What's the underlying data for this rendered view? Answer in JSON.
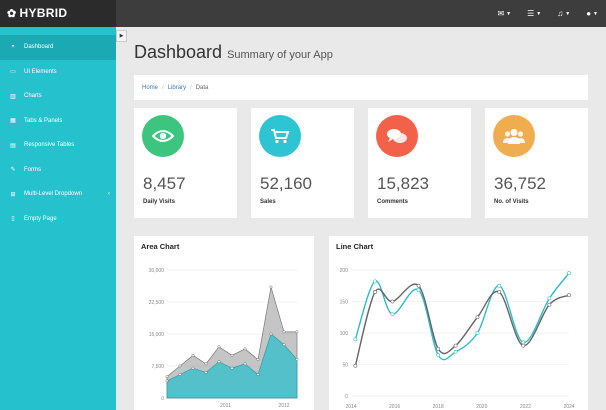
{
  "brand": {
    "name": "HYBRID"
  },
  "topbar": {
    "icons": [
      "envelope-icon",
      "tasks-icon",
      "bell-icon",
      "user-icon"
    ]
  },
  "sidebar": {
    "items": [
      {
        "label": "Dashboard",
        "icon": "dashboard-icon",
        "active": true
      },
      {
        "label": "UI Elements",
        "icon": "monitor-icon"
      },
      {
        "label": "Charts",
        "icon": "bar-chart-icon"
      },
      {
        "label": "Tabs & Panels",
        "icon": "grid-icon"
      },
      {
        "label": "Responsive Tables",
        "icon": "table-icon"
      },
      {
        "label": "Forms",
        "icon": "edit-icon"
      },
      {
        "label": "Multi-Level Dropdown",
        "icon": "sitemap-icon",
        "chevron": "‹"
      },
      {
        "label": "Empty Page",
        "icon": "file-icon"
      }
    ]
  },
  "header": {
    "title": "Dashboard",
    "subtitle": "Summary of your App"
  },
  "breadcrumb": {
    "items": [
      "Home",
      "Library",
      "Data"
    ]
  },
  "stats": [
    {
      "value": "8,457",
      "label": "Daily Visits",
      "color": "#3dc47e",
      "icon": "eye-icon"
    },
    {
      "value": "52,160",
      "label": "Sales",
      "color": "#2fc4d4",
      "icon": "shopping-cart-icon"
    },
    {
      "value": "15,823",
      "label": "Comments",
      "color": "#f2624a",
      "icon": "comments-icon"
    },
    {
      "value": "36,752",
      "label": "No. of Visits",
      "color": "#f0ad4e",
      "icon": "users-icon"
    }
  ],
  "chart_data": [
    {
      "type": "area",
      "title": "Area Chart",
      "x_ticks": [
        "2011",
        "2012"
      ],
      "y_ticks": [
        "0",
        "7,500",
        "15,000",
        "22,500",
        "30,000"
      ],
      "ylim": [
        0,
        30000
      ],
      "series": [
        {
          "color": "#9e9e9e",
          "values": [
            5000,
            7500,
            10000,
            8000,
            12000,
            10000,
            11500,
            9000,
            26000,
            15500,
            15500
          ]
        },
        {
          "color": "#3fbfca",
          "values": [
            4000,
            5500,
            7000,
            6000,
            8500,
            7000,
            8000,
            5500,
            15000,
            12500,
            9000
          ]
        }
      ]
    },
    {
      "type": "line",
      "title": "Line Chart",
      "x_ticks": [
        "2014",
        "2016",
        "2018",
        "2020",
        "2022",
        "2024"
      ],
      "y_ticks": [
        "0",
        "50",
        "100",
        "150",
        "200"
      ],
      "ylim": [
        0,
        200
      ],
      "xlim": [
        2014,
        2024
      ],
      "series": [
        {
          "color": "#2fbcc8",
          "x": [
            2014.2,
            2015.1,
            2015.9,
            2017.1,
            2018.0,
            2018.8,
            2019.8,
            2020.8,
            2021.9,
            2023.1,
            2024.0
          ],
          "values": [
            90,
            182,
            130,
            168,
            65,
            70,
            100,
            175,
            85,
            155,
            195
          ]
        },
        {
          "color": "#666666",
          "x": [
            2014.2,
            2015.1,
            2015.9,
            2017.1,
            2018.0,
            2018.8,
            2019.8,
            2020.8,
            2021.9,
            2023.1,
            2024.0
          ],
          "values": [
            48,
            165,
            150,
            175,
            75,
            80,
            125,
            165,
            80,
            145,
            160
          ]
        }
      ]
    }
  ]
}
